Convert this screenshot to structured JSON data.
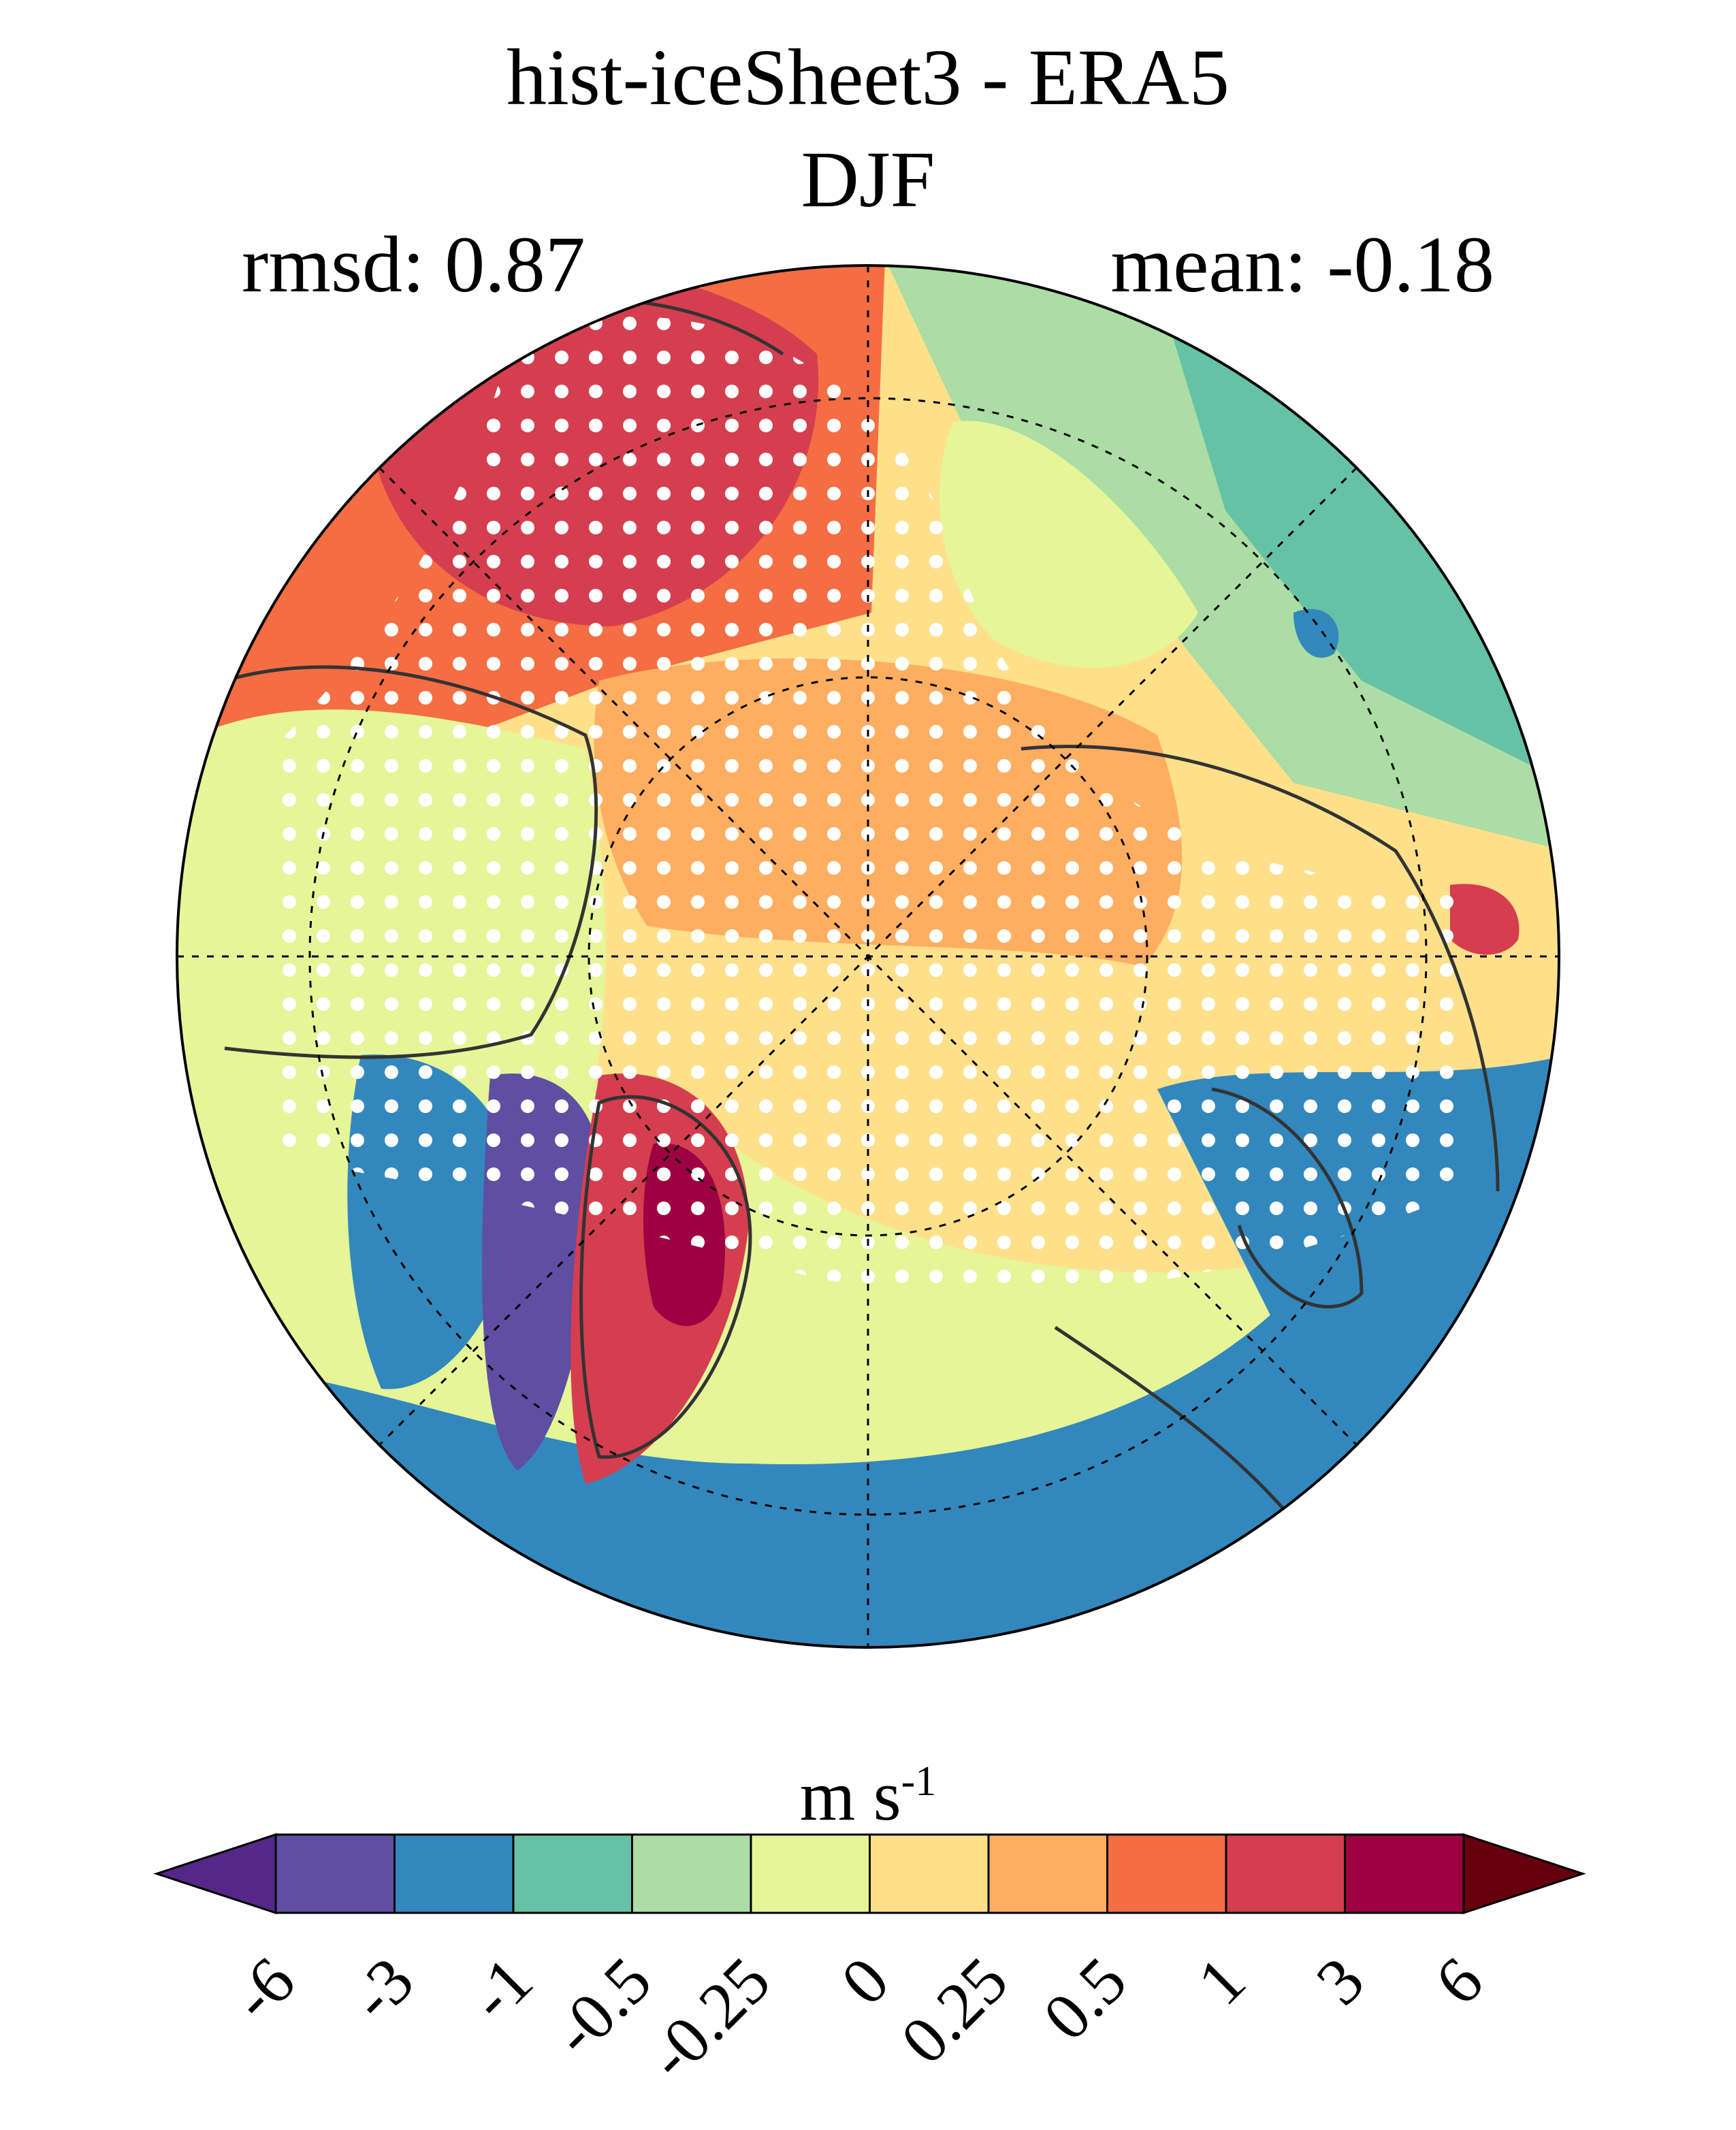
{
  "figure": {
    "title": "hist-iceSheet3 - ERA5",
    "subtitle": "DJF",
    "rmsd_label": "rmsd: 0.87",
    "mean_label": "mean: -0.18"
  },
  "colorbar": {
    "units_base": "m s",
    "units_exponent": "-1",
    "levels": [
      "-6",
      "-3",
      "-1",
      "-0.5",
      "-0.25",
      "0",
      "0.25",
      "0.5",
      "1",
      "3",
      "6"
    ],
    "colors": [
      "#542788",
      "#5e4fa2",
      "#3288bd",
      "#66c2a5",
      "#abdda4",
      "#e6f598",
      "#fee08b",
      "#fdae61",
      "#f46d43",
      "#d53e4f",
      "#9e0142",
      "#67000d"
    ],
    "extend": "both"
  },
  "map": {
    "projection": "north polar stereographic",
    "significance_stippling": true,
    "background_color": "#fee08b"
  }
}
